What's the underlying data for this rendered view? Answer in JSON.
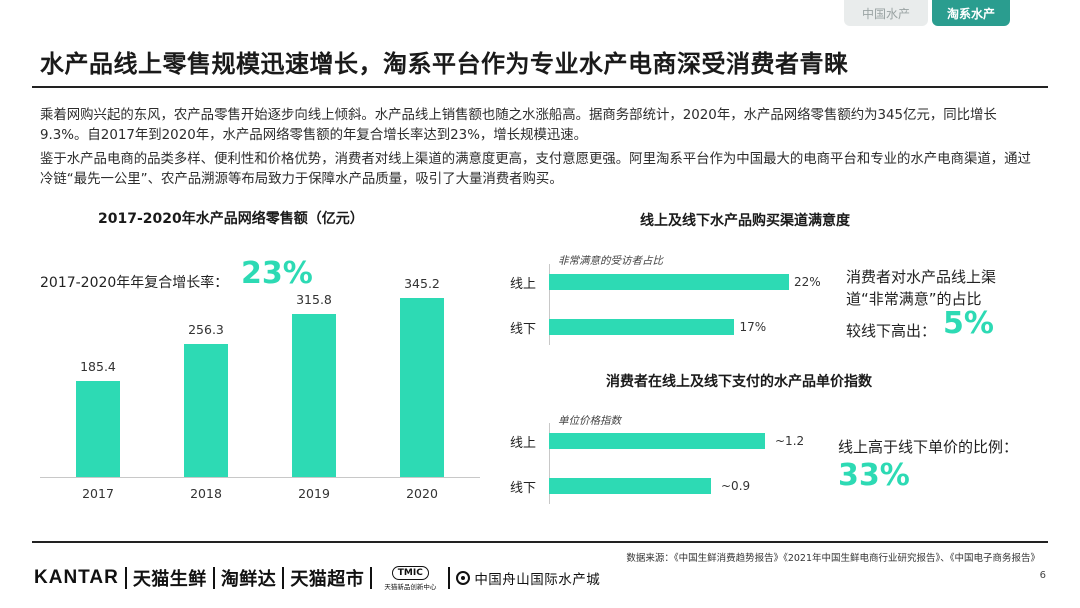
{
  "tabs": [
    {
      "label": "中国水产",
      "active": false
    },
    {
      "label": "淘系水产",
      "active": true
    }
  ],
  "title": "水产品线上零售规模迅速增长，淘系平台作为专业水产电商深受消费者青睐",
  "paragraphs": [
    "乘着网购兴起的东风，农产品零售开始逐步向线上倾斜。水产品线上销售额也随之水涨船高。据商务部统计，2020年，水产品网络零售额约为345亿元，同比增长9.3%。自2017年到2020年，水产品网络零售额的年复合增长率达到23%，增长规模迅速。",
    "鉴于水产品电商的品类多样、便利性和价格优势，消费者对线上渠道的满意度更高，支付意愿更强。阿里淘系平台作为中国最大的电商平台和专业的水产电商渠道，通过冷链“最先一公里”、农产品溯源等布局致力于保障水产品质量，吸引了大量消费者购买。"
  ],
  "cagr": {
    "label": "2017-2020年年复合增长率：",
    "value": "23%"
  },
  "satisfaction_note": {
    "text": "消费者对水产品线上渠道“非常满意”的占比",
    "prefix": "较线下高出：",
    "value": "5%"
  },
  "price_note": {
    "text": "线上高于线下单价的比例：",
    "value": "33%"
  },
  "footer": {
    "source": "数据来源：《中国生鲜消费趋势报告》《2021年中国生鲜电商行业研究报告》、《中国电子商务报告》",
    "page": "6",
    "logos": [
      "KANTAR",
      "天猫生鲜",
      "淘鲜达",
      "天猫超市",
      "TMIC",
      "天猫新品创新中心",
      "中国舟山国际水产城"
    ]
  },
  "chart_data": [
    {
      "type": "bar",
      "title": "2017-2020年水产品网络零售额（亿元）",
      "categories": [
        "2017",
        "2018",
        "2019",
        "2020"
      ],
      "values": [
        185.4,
        256.3,
        315.8,
        345.2
      ],
      "value_labels": [
        "185.4",
        "256.3",
        "315.8",
        "345.2"
      ],
      "xlabel": "",
      "ylabel": "亿元",
      "ylim": [
        0,
        400
      ]
    },
    {
      "type": "bar",
      "orientation": "horizontal",
      "title": "线上及线下水产品购买渠道满意度",
      "subtitle": "非常满意的受访者占比",
      "categories": [
        "线上",
        "线下"
      ],
      "values": [
        22,
        17
      ],
      "value_labels": [
        "22%",
        "17%"
      ],
      "xlim": [
        0,
        22
      ]
    },
    {
      "type": "bar",
      "orientation": "horizontal",
      "title": "消费者在线上及线下支付的水产品单价指数",
      "subtitle": "单位价格指数",
      "categories": [
        "线上",
        "线下"
      ],
      "values": [
        1.2,
        0.9
      ],
      "value_labels": [
        "~1.2",
        "~0.9"
      ],
      "xlim": [
        0,
        1.2
      ]
    }
  ]
}
